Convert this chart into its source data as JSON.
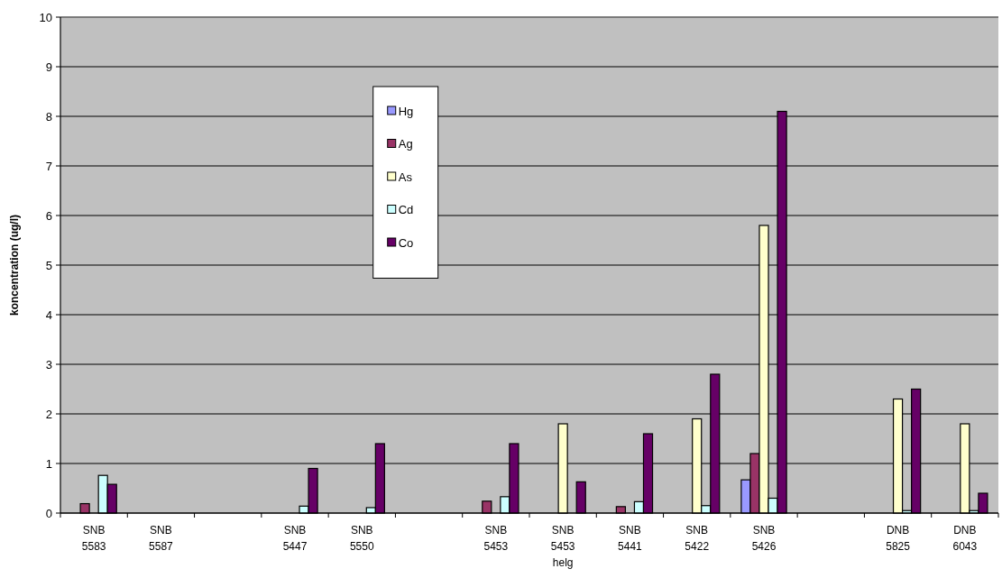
{
  "chart_data": {
    "type": "bar",
    "ylabel": "koncentration (ug/l)",
    "categories": [
      "SNB 5583",
      "SNB 5587",
      null,
      "SNB 5447",
      "SNB 5550",
      null,
      "SNB 5453",
      "SNB 5453 helg",
      "SNB 5441",
      "SNB 5422",
      "SNB 5426",
      null,
      "DNB 5825",
      "DNB 6043"
    ],
    "series": [
      {
        "name": "Hg",
        "color": "#9999ff",
        "values": [
          null,
          null,
          null,
          null,
          null,
          null,
          null,
          null,
          null,
          null,
          0.67,
          null,
          null,
          null
        ]
      },
      {
        "name": "Ag",
        "color": "#993366",
        "values": [
          0.19,
          null,
          null,
          null,
          null,
          null,
          0.24,
          null,
          0.13,
          null,
          1.2,
          null,
          null,
          null
        ]
      },
      {
        "name": "As",
        "color": "#ffffcc",
        "values": [
          null,
          null,
          null,
          null,
          null,
          null,
          null,
          1.8,
          null,
          1.9,
          5.8,
          null,
          2.3,
          1.8
        ]
      },
      {
        "name": "Cd",
        "color": "#ccffff",
        "values": [
          0.76,
          null,
          null,
          0.14,
          0.11,
          null,
          0.33,
          null,
          0.23,
          0.15,
          0.3,
          null,
          0.05,
          0.05
        ]
      },
      {
        "name": "Co",
        "color": "#660066",
        "values": [
          0.58,
          null,
          null,
          0.9,
          1.4,
          null,
          1.4,
          0.63,
          1.6,
          2.8,
          8.1,
          null,
          2.5,
          0.4
        ]
      }
    ],
    "ylim": [
      0,
      10
    ],
    "yticks": [
      0,
      1,
      2,
      3,
      4,
      5,
      6,
      7,
      8,
      9,
      10
    ],
    "grid": "y",
    "legend": "top left"
  }
}
